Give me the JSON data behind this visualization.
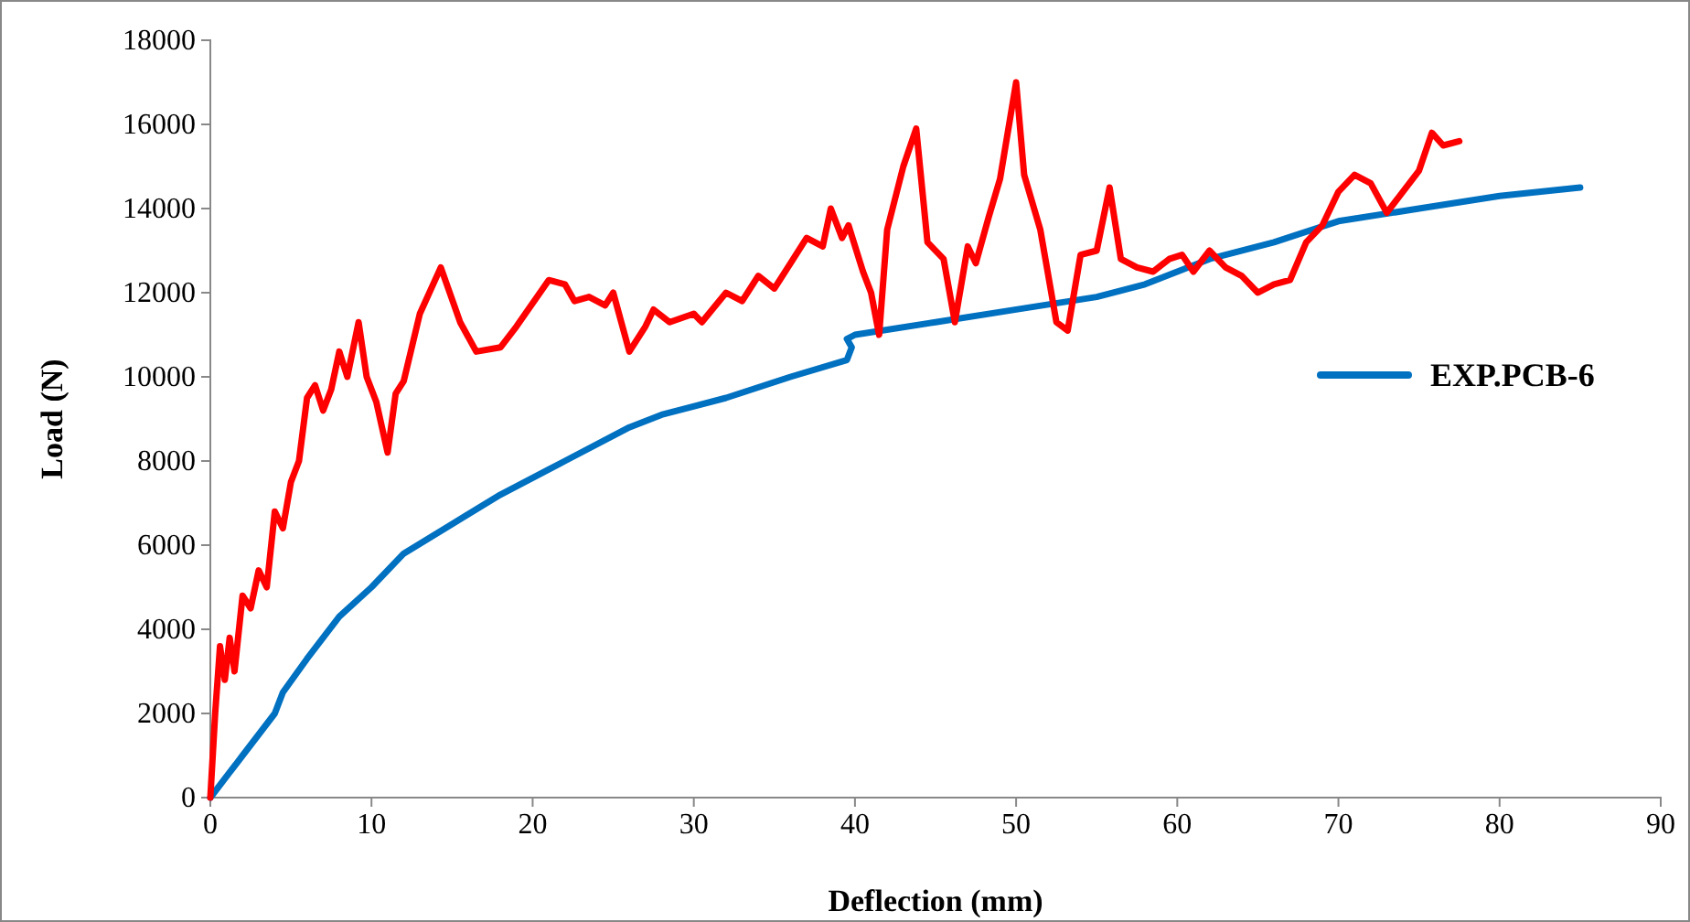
{
  "chart_data": {
    "type": "line",
    "xlabel": "Deflection (mm)",
    "ylabel": "Load (N)",
    "xlim": [
      0,
      90
    ],
    "xticks": [
      0,
      10,
      20,
      30,
      40,
      50,
      60,
      70,
      80,
      90
    ],
    "ylim": [
      0,
      18000
    ],
    "yticks": [
      0,
      2000,
      4000,
      6000,
      8000,
      10000,
      12000,
      14000,
      16000,
      18000
    ],
    "grid": false,
    "legend": "right",
    "marker": "none",
    "line_style": "solid",
    "series": [
      {
        "name": "EXP.PCB-6",
        "color": "#0070c0",
        "x": [
          0,
          2,
          4,
          4.5,
          6,
          8,
          10,
          12,
          15,
          18,
          22,
          26,
          28,
          32,
          36,
          39.5,
          39.8,
          39.5,
          40,
          45,
          50,
          55,
          58,
          62,
          66,
          70,
          75,
          80,
          85
        ],
        "values": [
          0,
          1000,
          2000,
          2500,
          3300,
          4300,
          5000,
          5800,
          6500,
          7200,
          8000,
          8800,
          9100,
          9500,
          10000,
          10400,
          10700,
          10900,
          11000,
          11300,
          11600,
          11900,
          12200,
          12800,
          13200,
          13700,
          14000,
          14300,
          14500
        ]
      },
      {
        "color": "#ff0000",
        "x": [
          0,
          0.3,
          0.6,
          0.9,
          1.2,
          1.5,
          2,
          2.5,
          3,
          3.5,
          4,
          4.5,
          5,
          5.5,
          6,
          6.5,
          7,
          7.5,
          8,
          8.5,
          9.2,
          9.7,
          10.3,
          11,
          11.5,
          12,
          13,
          14.3,
          15.5,
          16.5,
          18,
          19,
          21,
          22,
          22.6,
          23.5,
          24.5,
          25,
          26,
          27,
          27.5,
          28.5,
          30,
          30.5,
          32,
          33,
          34,
          35,
          36,
          37,
          38,
          38.5,
          39.2,
          39.6,
          40.5,
          41,
          41.5,
          42,
          43,
          43.8,
          44.5,
          45.5,
          46.2,
          47,
          47.5,
          48.3,
          49,
          50,
          50.5,
          51.5,
          52.5,
          53.2,
          54,
          55,
          55.8,
          56.5,
          57.5,
          58.5,
          59.5,
          60.3,
          61,
          62,
          63,
          64,
          65,
          66,
          67,
          68,
          69,
          70,
          71,
          72,
          73,
          74,
          75,
          75.8,
          76.5,
          77.5
        ],
        "values": [
          0,
          2000,
          3600,
          2800,
          3800,
          3000,
          4800,
          4500,
          5400,
          5000,
          6800,
          6400,
          7500,
          8000,
          9500,
          9800,
          9200,
          9700,
          10600,
          10000,
          11300,
          10000,
          9400,
          8200,
          9600,
          9900,
          11500,
          12600,
          11300,
          10600,
          10700,
          11200,
          12300,
          12200,
          11800,
          11900,
          11700,
          12000,
          10600,
          11200,
          11600,
          11300,
          11500,
          11300,
          12000,
          11800,
          12400,
          12100,
          12700,
          13300,
          13100,
          14000,
          13300,
          13600,
          12500,
          12000,
          11000,
          13500,
          15000,
          15900,
          13200,
          12800,
          11300,
          13100,
          12700,
          13800,
          14700,
          17000,
          14800,
          13500,
          11300,
          11100,
          12900,
          13000,
          14500,
          12800,
          12600,
          12500,
          12800,
          12900,
          12500,
          13000,
          12600,
          12400,
          12000,
          12200,
          12300,
          13200,
          13600,
          14400,
          14800,
          14600,
          13900,
          14400,
          14900,
          15800,
          15500,
          15600
        ]
      }
    ]
  }
}
